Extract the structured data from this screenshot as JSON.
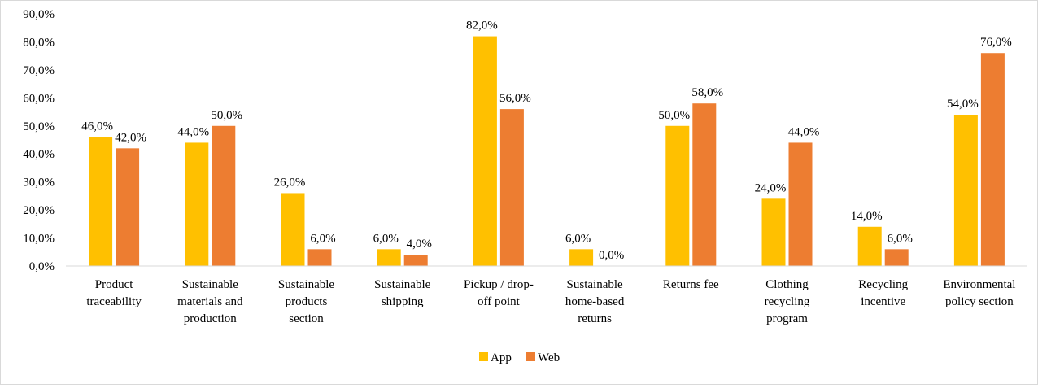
{
  "chart_data": {
    "type": "bar",
    "title": "",
    "xlabel": "",
    "ylabel": "",
    "ylim": [
      0,
      90
    ],
    "ytick_step": 10,
    "ytick_labels": [
      "0,0%",
      "10,0%",
      "20,0%",
      "30,0%",
      "40,0%",
      "50,0%",
      "60,0%",
      "70,0%",
      "80,0%",
      "90,0%"
    ],
    "grid": false,
    "legend_position": "bottom",
    "categories": [
      [
        "Product",
        "traceability"
      ],
      [
        "Sustainable",
        "materials and",
        "production"
      ],
      [
        "Sustainable",
        "products",
        "section"
      ],
      [
        "Sustainable",
        "shipping"
      ],
      [
        "Pickup / drop-",
        "off point"
      ],
      [
        "Sustainable",
        "home-based",
        "returns"
      ],
      [
        "Returns fee"
      ],
      [
        "Clothing",
        "recycling",
        "program"
      ],
      [
        "Recycling",
        "incentive"
      ],
      [
        "Environmental",
        "policy section"
      ]
    ],
    "series": [
      {
        "name": "App",
        "color": "#FFC000",
        "values": [
          46,
          44,
          26,
          6,
          82,
          6,
          50,
          24,
          14,
          54
        ],
        "labels": [
          "46,0%",
          "44,0%",
          "26,0%",
          "6,0%",
          "82,0%",
          "6,0%",
          "50,0%",
          "24,0%",
          "14,0%",
          "54,0%"
        ]
      },
      {
        "name": "Web",
        "color": "#ED7D31",
        "values": [
          42,
          50,
          6,
          4,
          56,
          0,
          58,
          44,
          6,
          76
        ],
        "labels": [
          "42,0%",
          "50,0%",
          "6,0%",
          "4,0%",
          "56,0%",
          "0,0%",
          "58,0%",
          "44,0%",
          "6,0%",
          "76,0%"
        ]
      }
    ]
  }
}
